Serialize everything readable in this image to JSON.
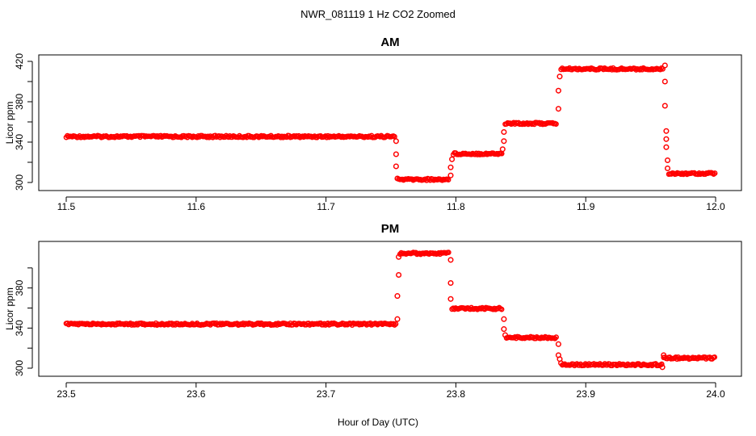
{
  "page_title": "NWR_081119  1 Hz CO2 Zoomed",
  "xlabel": "Hour of Day (UTC)",
  "colors": {
    "points": "#ff0000",
    "axes": "#000000",
    "background": "#ffffff"
  },
  "chart_data": [
    {
      "type": "scatter",
      "title": "AM",
      "xlabel": "",
      "ylabel": "Licor ppm",
      "xlim": [
        11.5,
        12.0
      ],
      "ylim": [
        300,
        420
      ],
      "x_ticks": [
        11.5,
        11.6,
        11.7,
        11.8,
        11.9,
        12.0
      ],
      "x_tick_labels": [
        "11.5",
        "11.6",
        "11.7",
        "11.8",
        "11.9",
        "12.0"
      ],
      "y_ticks": [
        300,
        320,
        340,
        360,
        380,
        400,
        420
      ],
      "y_tick_labels": [
        "300",
        "",
        "340",
        "",
        "380",
        "",
        "420"
      ],
      "grid": false,
      "series": [
        {
          "segments": [
            {
              "x_start": 11.5,
              "x_end": 11.753,
              "y": 345.5
            },
            {
              "x_start": 11.756,
              "x_end": 11.795,
              "y": 303.0
            },
            {
              "x_start": 11.798,
              "x_end": 11.836,
              "y": 328.5
            },
            {
              "x_start": 11.838,
              "x_end": 11.878,
              "y": 358.5
            },
            {
              "x_start": 11.881,
              "x_end": 11.96,
              "y": 412.5
            },
            {
              "x_start": 11.964,
              "x_end": 12.0,
              "y": 309.0
            }
          ],
          "transitions": [
            {
              "x": 11.754,
              "y": 341
            },
            {
              "x": 11.754,
              "y": 328
            },
            {
              "x": 11.754,
              "y": 316
            },
            {
              "x": 11.755,
              "y": 304
            },
            {
              "x": 11.796,
              "y": 307
            },
            {
              "x": 11.796,
              "y": 315
            },
            {
              "x": 11.797,
              "y": 323
            },
            {
              "x": 11.836,
              "y": 333
            },
            {
              "x": 11.837,
              "y": 341
            },
            {
              "x": 11.837,
              "y": 350
            },
            {
              "x": 11.879,
              "y": 373
            },
            {
              "x": 11.879,
              "y": 391
            },
            {
              "x": 11.88,
              "y": 405
            },
            {
              "x": 11.961,
              "y": 416
            },
            {
              "x": 11.961,
              "y": 400
            },
            {
              "x": 11.961,
              "y": 376
            },
            {
              "x": 11.962,
              "y": 351
            },
            {
              "x": 11.962,
              "y": 343
            },
            {
              "x": 11.962,
              "y": 335
            },
            {
              "x": 11.963,
              "y": 322
            },
            {
              "x": 11.963,
              "y": 314
            }
          ]
        }
      ]
    },
    {
      "type": "scatter",
      "title": "PM",
      "xlabel": "Hour of Day (UTC)",
      "ylabel": "Licor ppm",
      "xlim": [
        23.5,
        24.0
      ],
      "ylim": [
        300,
        420
      ],
      "x_ticks": [
        23.5,
        23.6,
        23.7,
        23.8,
        23.9,
        24.0
      ],
      "x_tick_labels": [
        "23.5",
        "23.6",
        "23.7",
        "23.8",
        "23.9",
        "24.0"
      ],
      "y_ticks": [
        300,
        320,
        340,
        360,
        380,
        400
      ],
      "y_tick_labels": [
        "300",
        "",
        "340",
        "",
        "380",
        ""
      ],
      "grid": false,
      "series": [
        {
          "segments": [
            {
              "x_start": 23.5,
              "x_end": 23.754,
              "y": 344.0
            },
            {
              "x_start": 23.757,
              "x_end": 23.795,
              "y": 414.5
            },
            {
              "x_start": 23.797,
              "x_end": 23.836,
              "y": 359.5
            },
            {
              "x_start": 23.839,
              "x_end": 23.878,
              "y": 330.5
            },
            {
              "x_start": 23.882,
              "x_end": 23.959,
              "y": 303.5
            },
            {
              "x_start": 23.96,
              "x_end": 24.0,
              "y": 310.0
            }
          ],
          "transitions": [
            {
              "x": 23.755,
              "y": 349
            },
            {
              "x": 23.755,
              "y": 372
            },
            {
              "x": 23.756,
              "y": 393
            },
            {
              "x": 23.756,
              "y": 411
            },
            {
              "x": 23.796,
              "y": 408
            },
            {
              "x": 23.796,
              "y": 385
            },
            {
              "x": 23.796,
              "y": 369
            },
            {
              "x": 23.837,
              "y": 349
            },
            {
              "x": 23.837,
              "y": 339
            },
            {
              "x": 23.838,
              "y": 333
            },
            {
              "x": 23.879,
              "y": 324
            },
            {
              "x": 23.879,
              "y": 313
            },
            {
              "x": 23.88,
              "y": 309
            },
            {
              "x": 23.881,
              "y": 305
            },
            {
              "x": 23.959,
              "y": 301
            },
            {
              "x": 23.96,
              "y": 313
            }
          ]
        }
      ]
    }
  ]
}
